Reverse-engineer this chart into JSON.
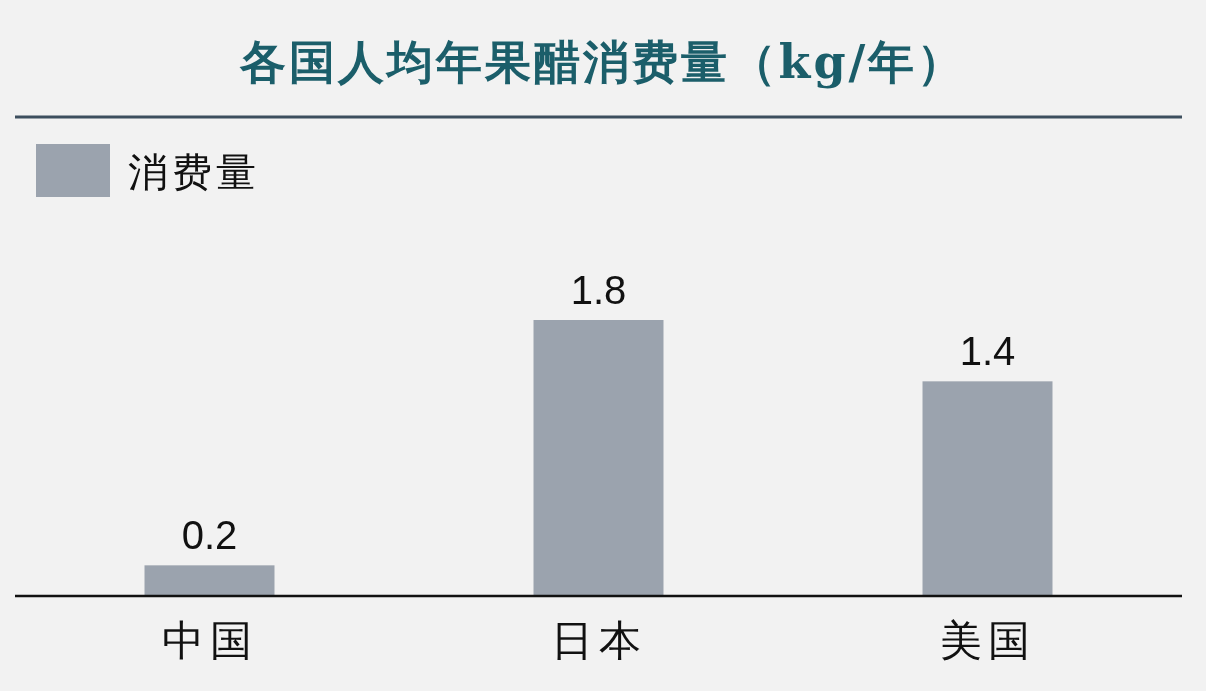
{
  "chart_data": {
    "type": "bar",
    "title": "各国人均年果醋消费量（kg/年）",
    "categories": [
      "中国",
      "日本",
      "美国"
    ],
    "series": [
      {
        "name": "消费量",
        "color": "#9ba3ae",
        "values": [
          0.2,
          1.8,
          1.4
        ]
      }
    ],
    "data_labels": true,
    "legend": "top left"
  }
}
